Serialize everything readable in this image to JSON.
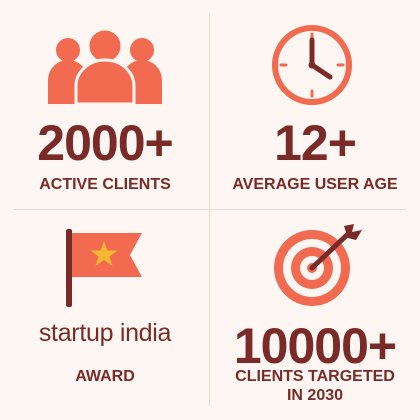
{
  "colors": {
    "accent": "#f26b50",
    "text": "#7a2a27",
    "background": "#fdf6f2",
    "star": "#f7b733"
  },
  "stats": [
    {
      "value": "2000+",
      "label": "ACTIVE CLIENTS",
      "icon": "people-group-icon"
    },
    {
      "value": "12+",
      "label": "AVERAGE USER AGE",
      "icon": "clock-icon"
    },
    {
      "brand": "startup india",
      "label": "AWARD",
      "icon": "flag-star-icon"
    },
    {
      "value": "10000+",
      "label_line1": "CLIENTS TARGETED",
      "label_line2": "IN 2030",
      "icon": "target-arrow-icon"
    }
  ]
}
